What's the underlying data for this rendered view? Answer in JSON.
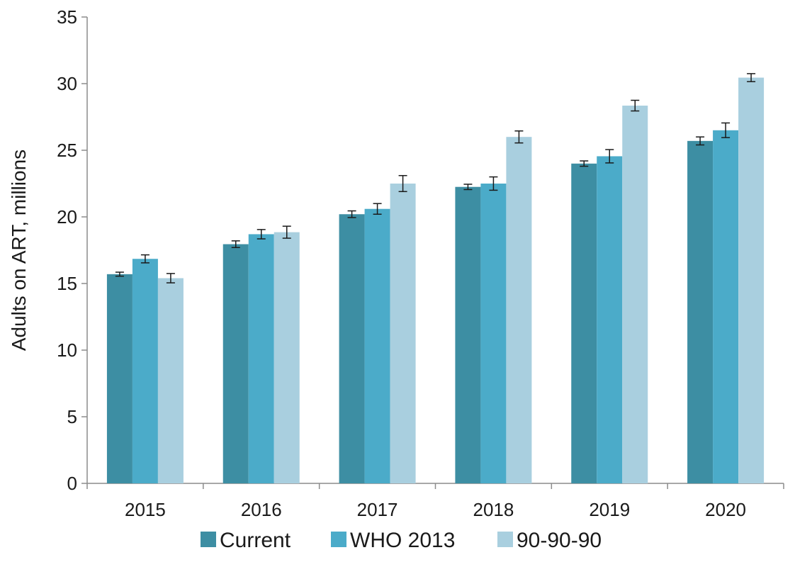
{
  "chart_data": {
    "type": "bar",
    "title": "",
    "xlabel": "",
    "ylabel": "Adults on ART, millions",
    "ylim": [
      0,
      35
    ],
    "yticks": [
      0,
      5,
      10,
      15,
      20,
      25,
      30,
      35
    ],
    "grid": false,
    "legend_position": "bottom",
    "categories": [
      "2015",
      "2016",
      "2017",
      "2018",
      "2019",
      "2020"
    ],
    "series": [
      {
        "name": "Current",
        "color": "#3d8ea3",
        "values": [
          15.7,
          17.95,
          20.2,
          22.25,
          24.0,
          25.7
        ],
        "error": [
          0.15,
          0.25,
          0.25,
          0.2,
          0.2,
          0.3
        ]
      },
      {
        "name": "WHO 2013",
        "color": "#4babc9",
        "values": [
          16.85,
          18.7,
          20.6,
          22.5,
          24.55,
          26.5
        ],
        "error": [
          0.3,
          0.35,
          0.4,
          0.5,
          0.5,
          0.55
        ]
      },
      {
        "name": "90-90-90",
        "color": "#a9cfdf",
        "values": [
          15.4,
          18.85,
          22.5,
          26.0,
          28.35,
          30.45
        ],
        "error": [
          0.35,
          0.45,
          0.6,
          0.45,
          0.4,
          0.3
        ]
      }
    ]
  }
}
